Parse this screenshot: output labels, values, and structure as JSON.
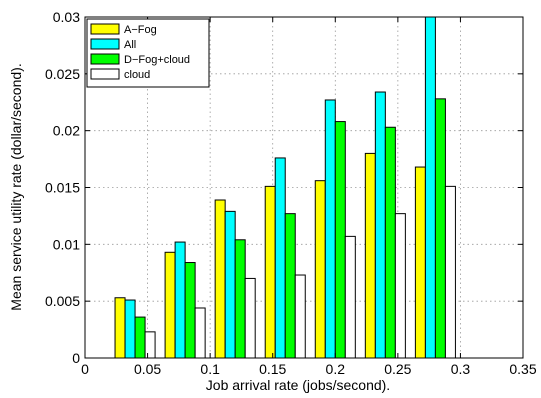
{
  "chart_data": {
    "type": "bar",
    "title": "",
    "xlabel": "Job arrival rate (jobs/second).",
    "ylabel": "Mean service utility rate (dollar/second).",
    "xlim": [
      0,
      0.35
    ],
    "ylim": [
      0,
      0.03
    ],
    "xticks": [
      "0",
      "0.05",
      "0.1",
      "0.15",
      "0.2",
      "0.25",
      "0.3",
      "0.35"
    ],
    "yticks": [
      "0",
      "0.005",
      "0.01",
      "0.015",
      "0.02",
      "0.025",
      "0.03"
    ],
    "grid": true,
    "legend_position": "top-left",
    "x": [
      0.04,
      0.08,
      0.12,
      0.16,
      0.2,
      0.24,
      0.28
    ],
    "series": [
      {
        "name": "A−Fog",
        "color": "#ffff00",
        "values": [
          0.0053,
          0.0093,
          0.0139,
          0.0151,
          0.0156,
          0.018,
          0.0168
        ]
      },
      {
        "name": "All",
        "color": "#00ffff",
        "values": [
          0.0051,
          0.0102,
          0.0129,
          0.0176,
          0.0227,
          0.0234,
          0.03
        ]
      },
      {
        "name": "D−Fog+cloud",
        "color": "#00ff00",
        "values": [
          0.0036,
          0.0084,
          0.0104,
          0.0127,
          0.0208,
          0.0203,
          0.0228
        ]
      },
      {
        "name": "cloud",
        "color": "#ffffff",
        "values": [
          0.0023,
          0.0044,
          0.007,
          0.0073,
          0.0107,
          0.0127,
          0.0151
        ]
      }
    ]
  }
}
